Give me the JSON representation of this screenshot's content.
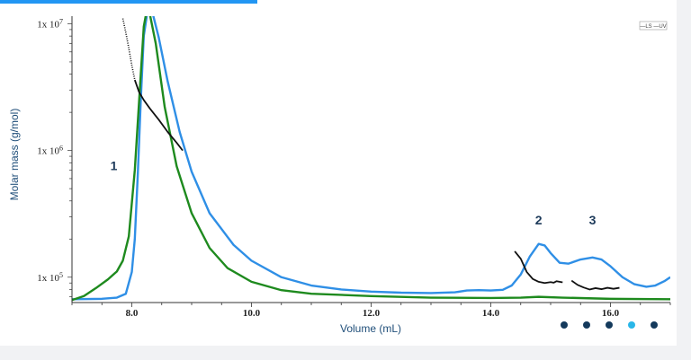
{
  "chart_data": {
    "type": "line",
    "xlabel": "Volume (mL)",
    "ylabel": "Molar mass (g/mol)",
    "xlim": [
      7.0,
      17.0
    ],
    "y_scale": "log",
    "y_ticks": [
      {
        "label_base": "1x 10",
        "label_exp": "7",
        "value": 10000000
      },
      {
        "label_base": "1x 10",
        "label_exp": "6",
        "value": 1000000
      },
      {
        "label_base": "1x 10",
        "label_exp": "5",
        "value": 100000
      }
    ],
    "x_ticks": [
      {
        "label": "8.0",
        "value": 8.0
      },
      {
        "label": "10.0",
        "value": 10.0
      },
      {
        "label": "12.0",
        "value": 12.0
      },
      {
        "label": "14.0",
        "value": 14.0
      },
      {
        "label": "16.0",
        "value": 16.0
      }
    ],
    "legend_text": "—LS —UV",
    "peak_labels": [
      {
        "text": "1",
        "x": 7.7,
        "y": 700000
      },
      {
        "text": "2",
        "x": 14.8,
        "y": 260000
      },
      {
        "text": "3",
        "x": 15.7,
        "y": 260000
      }
    ],
    "series": [
      {
        "key": "blue",
        "color": "#2f8fe6",
        "points": [
          [
            7.0,
            67000
          ],
          [
            7.5,
            67500
          ],
          [
            7.75,
            69000
          ],
          [
            7.9,
            74000
          ],
          [
            8.0,
            110000
          ],
          [
            8.05,
            200000
          ],
          [
            8.1,
            650000
          ],
          [
            8.15,
            2500000
          ],
          [
            8.2,
            8000000
          ],
          [
            8.25,
            11500000
          ],
          [
            8.3,
            12800000
          ],
          [
            8.35,
            12000000
          ],
          [
            8.45,
            7800000
          ],
          [
            8.6,
            3500000
          ],
          [
            8.8,
            1400000
          ],
          [
            9.0,
            680000
          ],
          [
            9.3,
            320000
          ],
          [
            9.7,
            180000
          ],
          [
            10.0,
            135000
          ],
          [
            10.5,
            100000
          ],
          [
            11.0,
            86000
          ],
          [
            11.5,
            80000
          ],
          [
            12.0,
            77000
          ],
          [
            12.5,
            75500
          ],
          [
            13.0,
            75000
          ],
          [
            13.4,
            76000
          ],
          [
            13.6,
            78500
          ],
          [
            13.8,
            79000
          ],
          [
            14.0,
            78500
          ],
          [
            14.2,
            79500
          ],
          [
            14.35,
            86000
          ],
          [
            14.5,
            105000
          ],
          [
            14.65,
            145000
          ],
          [
            14.8,
            183000
          ],
          [
            14.9,
            178000
          ],
          [
            15.0,
            155000
          ],
          [
            15.15,
            130000
          ],
          [
            15.3,
            128000
          ],
          [
            15.5,
            138000
          ],
          [
            15.7,
            143000
          ],
          [
            15.85,
            138000
          ],
          [
            16.0,
            122000
          ],
          [
            16.2,
            100000
          ],
          [
            16.4,
            88000
          ],
          [
            16.6,
            84000
          ],
          [
            16.75,
            86000
          ],
          [
            16.9,
            93000
          ],
          [
            17.0,
            100000
          ]
        ]
      },
      {
        "key": "green",
        "color": "#1e8a1e",
        "points": [
          [
            7.0,
            66000
          ],
          [
            7.2,
            71000
          ],
          [
            7.4,
            82000
          ],
          [
            7.6,
            96000
          ],
          [
            7.75,
            111000
          ],
          [
            7.85,
            135000
          ],
          [
            7.95,
            210000
          ],
          [
            8.05,
            700000
          ],
          [
            8.15,
            4000000
          ],
          [
            8.2,
            9500000
          ],
          [
            8.25,
            12800000
          ],
          [
            8.3,
            12000000
          ],
          [
            8.4,
            7000000
          ],
          [
            8.55,
            2200000
          ],
          [
            8.75,
            750000
          ],
          [
            9.0,
            320000
          ],
          [
            9.3,
            170000
          ],
          [
            9.6,
            118000
          ],
          [
            10.0,
            92000
          ],
          [
            10.5,
            79000
          ],
          [
            11.0,
            74000
          ],
          [
            12.0,
            71000
          ],
          [
            13.0,
            69000
          ],
          [
            14.0,
            68500
          ],
          [
            14.5,
            69000
          ],
          [
            14.8,
            70000
          ],
          [
            15.2,
            69000
          ],
          [
            16.0,
            67500
          ],
          [
            17.0,
            67000
          ]
        ]
      },
      {
        "key": "black-1",
        "color": "#111111",
        "dashed_until_x": 8.05,
        "points": [
          [
            7.85,
            11000000
          ],
          [
            7.9,
            8500000
          ],
          [
            7.95,
            6400000
          ],
          [
            8.0,
            4700000
          ],
          [
            8.05,
            3600000
          ],
          [
            8.12,
            2900000
          ],
          [
            8.2,
            2500000
          ],
          [
            8.3,
            2150000
          ],
          [
            8.45,
            1750000
          ],
          [
            8.6,
            1400000
          ],
          [
            8.75,
            1150000
          ],
          [
            8.85,
            1000000
          ]
        ]
      },
      {
        "key": "black-2",
        "color": "#111111",
        "points": [
          [
            14.4,
            160000
          ],
          [
            14.5,
            140000
          ],
          [
            14.6,
            110000
          ],
          [
            14.7,
            97000
          ],
          [
            14.8,
            92000
          ],
          [
            14.9,
            90000
          ],
          [
            15.0,
            91500
          ],
          [
            15.05,
            90500
          ],
          [
            15.1,
            93000
          ],
          [
            15.15,
            92000
          ],
          [
            15.2,
            91000
          ]
        ]
      },
      {
        "key": "black-3",
        "color": "#111111",
        "points": [
          [
            15.35,
            94000
          ],
          [
            15.45,
            87000
          ],
          [
            15.55,
            83000
          ],
          [
            15.65,
            80000
          ],
          [
            15.75,
            82000
          ],
          [
            15.85,
            80500
          ],
          [
            15.95,
            82500
          ],
          [
            16.05,
            81000
          ],
          [
            16.15,
            82500
          ]
        ]
      }
    ]
  },
  "pager": {
    "dot_colors": [
      "#143a5c",
      "#143a5c",
      "#143a5c",
      "#29b6e8",
      "#143a5c"
    ]
  }
}
